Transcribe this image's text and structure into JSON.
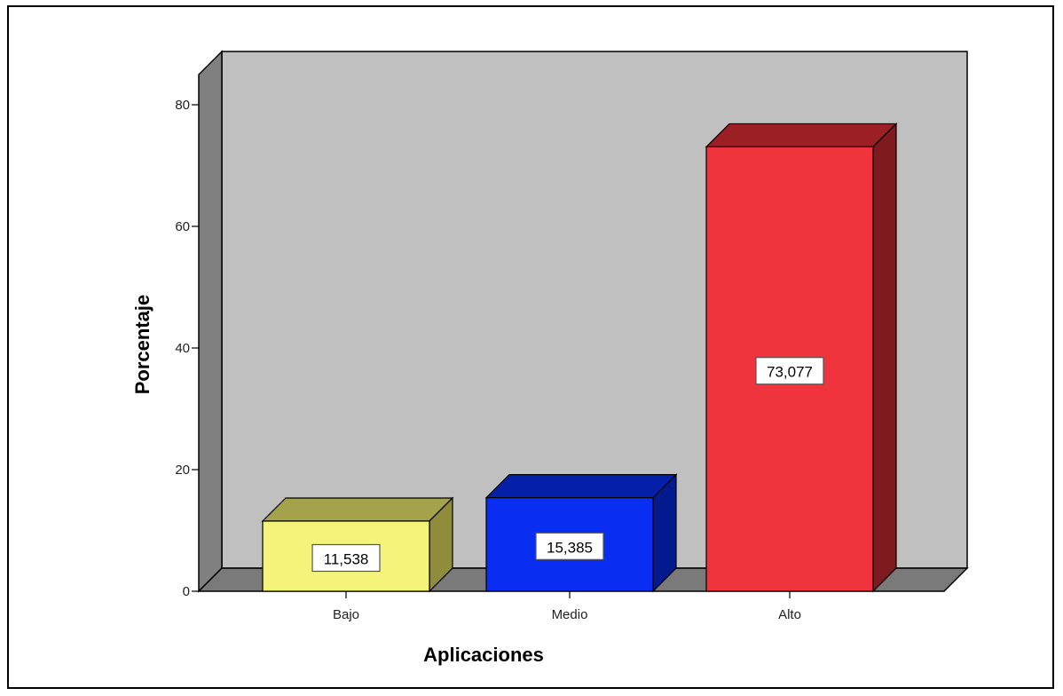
{
  "chart_data": {
    "type": "bar",
    "categories": [
      "Bajo",
      "Medio",
      "Alto"
    ],
    "values": [
      11.538,
      15.385,
      73.077
    ],
    "value_labels": [
      "11,538",
      "15,385",
      "73,077"
    ],
    "xlabel": "Aplicaciones",
    "ylabel": "Porcentaje",
    "ylim": [
      0,
      80
    ],
    "yticks": [
      0,
      20,
      40,
      60,
      80
    ],
    "grid": false,
    "style": "3d",
    "colors": {
      "plot_back": "#c0c0c0",
      "plot_side": "#808080",
      "plot_floor": "#7a7a7a",
      "bars": [
        "#f4f47a",
        "#0a2df2",
        "#f0343d"
      ],
      "bar_tops": [
        "#a4a24a",
        "#0420a8",
        "#9c1f25"
      ],
      "bar_sides": [
        "#8f8c3c",
        "#021a8e",
        "#7f1a1f"
      ]
    }
  }
}
